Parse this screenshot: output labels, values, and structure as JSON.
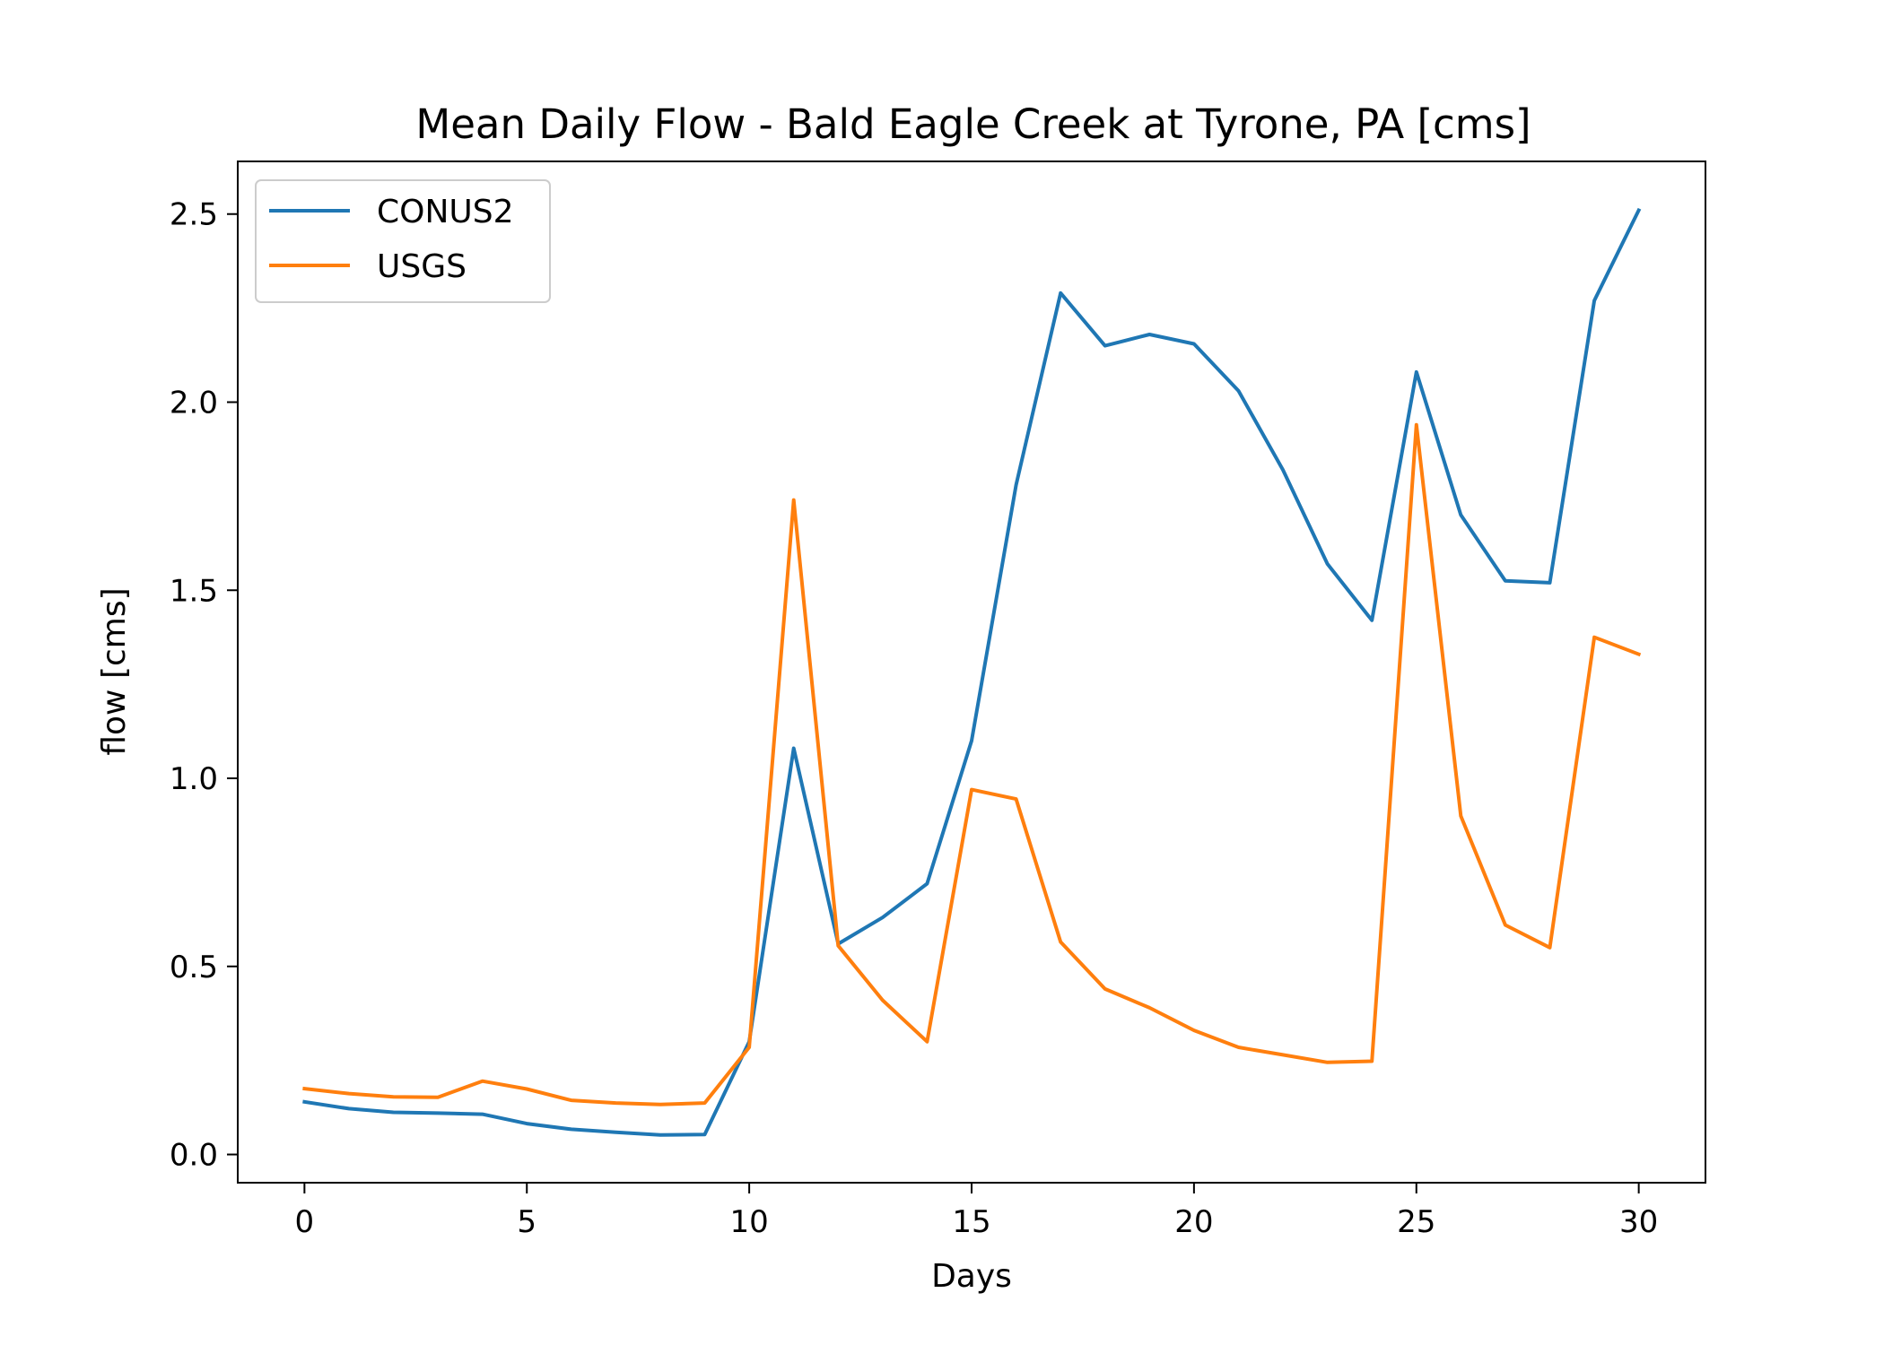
{
  "chart_data": {
    "type": "line",
    "title": "Mean Daily Flow - Bald Eagle Creek at Tyrone, PA [cms]",
    "xlabel": "Days",
    "ylabel": "flow [cms]",
    "xlim": [
      -1.5,
      31.5
    ],
    "ylim": [
      -0.075,
      2.64
    ],
    "xticks": [
      0,
      5,
      10,
      15,
      20,
      25,
      30
    ],
    "yticks": [
      0.0,
      0.5,
      1.0,
      1.5,
      2.0,
      2.5
    ],
    "xtick_labels": [
      "0",
      "5",
      "10",
      "15",
      "20",
      "25",
      "30"
    ],
    "ytick_labels": [
      "0.0",
      "0.5",
      "1.0",
      "1.5",
      "2.0",
      "2.5"
    ],
    "grid": false,
    "legend_position": "upper-left",
    "x": [
      0,
      1,
      2,
      3,
      4,
      5,
      6,
      7,
      8,
      9,
      10,
      11,
      12,
      13,
      14,
      15,
      16,
      17,
      18,
      19,
      20,
      21,
      22,
      23,
      24,
      25,
      26,
      27,
      28,
      29,
      30
    ],
    "series": [
      {
        "name": "CONUS2",
        "color": "#1f77b4",
        "values": [
          0.14,
          0.122,
          0.112,
          0.11,
          0.107,
          0.082,
          0.067,
          0.059,
          0.052,
          0.053,
          0.3,
          1.08,
          0.56,
          0.63,
          0.72,
          1.1,
          1.78,
          2.29,
          2.15,
          2.18,
          2.155,
          2.03,
          1.82,
          1.57,
          1.42,
          2.08,
          1.7,
          1.525,
          1.52,
          2.27,
          2.51
        ]
      },
      {
        "name": "USGS",
        "color": "#ff7f0e",
        "values": [
          0.175,
          0.162,
          0.153,
          0.152,
          0.195,
          0.174,
          0.144,
          0.137,
          0.133,
          0.137,
          0.285,
          1.74,
          0.555,
          0.41,
          0.3,
          0.97,
          0.945,
          0.565,
          0.44,
          0.39,
          0.33,
          0.285,
          0.265,
          0.245,
          0.248,
          1.94,
          0.9,
          0.61,
          0.55,
          1.375,
          1.33
        ]
      }
    ]
  }
}
